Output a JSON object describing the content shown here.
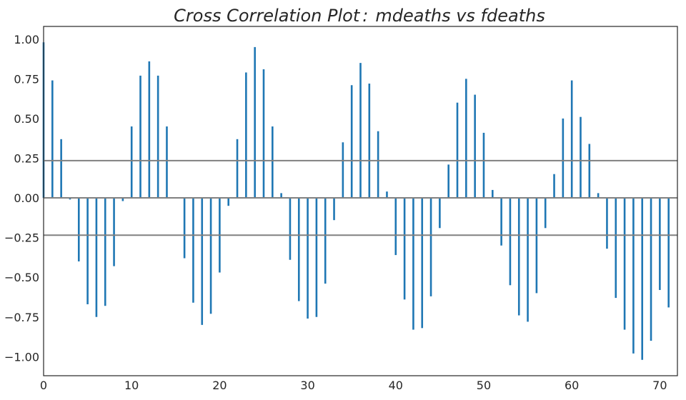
{
  "chart_data": {
    "type": "bar",
    "title": "Cross Correlation Plot :  mdeaths vs fdeaths",
    "title_parts": [
      "Cross Correlation Plot",
      ":",
      "mdeaths vs fdeaths"
    ],
    "xlabel": "",
    "ylabel": "",
    "xlim": [
      0,
      72
    ],
    "ylim": [
      -1.12,
      1.08
    ],
    "xticks": [
      0,
      10,
      20,
      30,
      40,
      50,
      60,
      70
    ],
    "xtick_labels": [
      "0",
      "10",
      "20",
      "30",
      "40",
      "50",
      "60",
      "70"
    ],
    "yticks": [
      1.0,
      0.75,
      0.5,
      0.25,
      0.0,
      -0.25,
      -0.5,
      -0.75,
      -1.0
    ],
    "ytick_labels": [
      "1.00",
      "0.75",
      "0.50",
      "0.25",
      "0.00",
      "−0.25",
      "−0.50",
      "−0.75",
      "−1.00"
    ],
    "grid": false,
    "confidence_lines": [
      0.235,
      0.0,
      -0.235
    ],
    "colors": {
      "bar": "#1f77b4",
      "lines": "#808080",
      "frame": "#262626"
    },
    "x": [
      0,
      1,
      2,
      3,
      4,
      5,
      6,
      7,
      8,
      9,
      10,
      11,
      12,
      13,
      14,
      15,
      16,
      17,
      18,
      19,
      20,
      21,
      22,
      23,
      24,
      25,
      26,
      27,
      28,
      29,
      30,
      31,
      32,
      33,
      34,
      35,
      36,
      37,
      38,
      39,
      40,
      41,
      42,
      43,
      44,
      45,
      46,
      47,
      48,
      49,
      50,
      51,
      52,
      53,
      54,
      55,
      56,
      57,
      58,
      59,
      60,
      61,
      62,
      63,
      64,
      65,
      66,
      67,
      68,
      69,
      70,
      71
    ],
    "values": [
      0.98,
      0.74,
      0.37,
      -0.01,
      -0.4,
      -0.67,
      -0.75,
      -0.68,
      -0.43,
      -0.02,
      0.45,
      0.77,
      0.86,
      0.77,
      0.45,
      0.0,
      -0.38,
      -0.66,
      -0.8,
      -0.73,
      -0.47,
      -0.05,
      0.37,
      0.79,
      0.95,
      0.81,
      0.45,
      0.03,
      -0.39,
      -0.65,
      -0.76,
      -0.75,
      -0.54,
      -0.14,
      0.35,
      0.71,
      0.85,
      0.72,
      0.42,
      0.04,
      -0.36,
      -0.64,
      -0.83,
      -0.82,
      -0.62,
      -0.19,
      0.21,
      0.6,
      0.75,
      0.65,
      0.41,
      0.05,
      -0.3,
      -0.55,
      -0.74,
      -0.78,
      -0.6,
      -0.19,
      0.15,
      0.5,
      0.74,
      0.51,
      0.34,
      0.03,
      -0.32,
      -0.63,
      -0.83,
      -0.98,
      -1.02,
      -0.9,
      -0.58,
      -0.69
    ]
  }
}
